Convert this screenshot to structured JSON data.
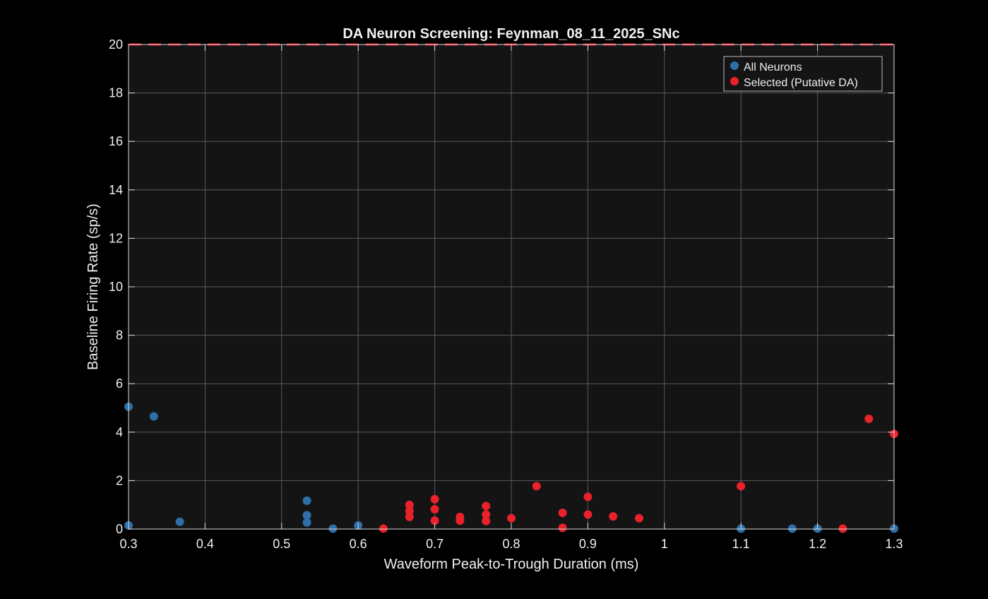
{
  "chart_data": {
    "type": "scatter",
    "title": "DA Neuron Screening: Feynman_08_11_2025_SNc",
    "xlabel": "Waveform Peak-to-Trough Duration (ms)",
    "ylabel": "Baseline Firing Rate (sp/s)",
    "xlim": [
      0.3,
      1.3
    ],
    "ylim": [
      0,
      20
    ],
    "xticks": [
      0.3,
      0.4,
      0.5,
      0.6,
      0.7,
      0.8,
      0.9,
      1,
      1.1,
      1.2,
      1.3
    ],
    "xtick_labels": [
      "0.3",
      "0.4",
      "0.5",
      "0.6",
      "0.7",
      "0.8",
      "0.9",
      "1",
      "1.1",
      "1.2",
      "1.3"
    ],
    "yticks": [
      0,
      2,
      4,
      6,
      8,
      10,
      12,
      14,
      16,
      18,
      20
    ],
    "ytick_labels": [
      "0",
      "2",
      "4",
      "6",
      "8",
      "10",
      "12",
      "14",
      "16",
      "18",
      "20"
    ],
    "grid": true,
    "threshold_line": {
      "y": 20,
      "style": "dashed",
      "color": "#e8212b"
    },
    "legend_position": "top-right",
    "series": [
      {
        "name": "All Neurons",
        "color": "#2f6fa8",
        "points": [
          [
            0.3,
            5.05
          ],
          [
            0.3,
            0.15
          ],
          [
            0.333,
            4.65
          ],
          [
            0.367,
            0.3
          ],
          [
            0.533,
            1.17
          ],
          [
            0.533,
            0.57
          ],
          [
            0.533,
            0.27
          ],
          [
            0.567,
            0.02
          ],
          [
            0.6,
            0.15
          ],
          [
            1.1,
            0.02
          ],
          [
            1.167,
            0.02
          ],
          [
            1.2,
            0.02
          ],
          [
            1.3,
            0.02
          ]
        ]
      },
      {
        "name": "Selected (Putative DA)",
        "color": "#e8212b",
        "points": [
          [
            0.633,
            0.02
          ],
          [
            0.667,
            1.0
          ],
          [
            0.667,
            0.75
          ],
          [
            0.667,
            0.5
          ],
          [
            0.7,
            1.23
          ],
          [
            0.7,
            0.82
          ],
          [
            0.7,
            0.35
          ],
          [
            0.733,
            0.5
          ],
          [
            0.733,
            0.35
          ],
          [
            0.767,
            0.95
          ],
          [
            0.767,
            0.6
          ],
          [
            0.767,
            0.33
          ],
          [
            0.8,
            0.45
          ],
          [
            0.833,
            1.77
          ],
          [
            0.867,
            0.67
          ],
          [
            0.867,
            0.05
          ],
          [
            0.9,
            1.33
          ],
          [
            0.9,
            0.6
          ],
          [
            0.933,
            0.52
          ],
          [
            0.967,
            0.45
          ],
          [
            1.1,
            1.77
          ],
          [
            1.233,
            0.02
          ],
          [
            1.267,
            4.55
          ],
          [
            1.3,
            3.93
          ]
        ]
      }
    ]
  }
}
